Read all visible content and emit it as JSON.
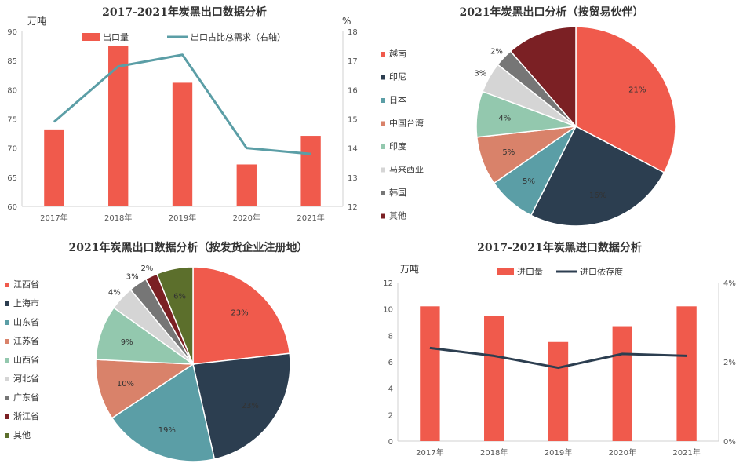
{
  "chart_data": [
    {
      "type": "bar",
      "title": "2017-2021年炭黑出口数据分析",
      "ylabel": "万吨",
      "y2label": "%",
      "categories": [
        "2017年",
        "2018年",
        "2019年",
        "2020年",
        "2021年"
      ],
      "ylim": [
        60,
        90
      ],
      "y2lim": [
        12,
        18
      ],
      "yticks": [
        "60",
        "65",
        "70",
        "75",
        "80",
        "85",
        "90"
      ],
      "y2ticks": [
        "12",
        "13",
        "14",
        "15",
        "16",
        "17",
        "18"
      ],
      "series": [
        {
          "name": "出口量",
          "type": "bar",
          "axis": "left",
          "color": "#f05a4c",
          "values": [
            73.2,
            87.5,
            81.2,
            67.2,
            72.1
          ]
        },
        {
          "name": "出口占比总需求（右轴）",
          "type": "line",
          "axis": "right",
          "color": "#5b9ea6",
          "values": [
            14.9,
            16.8,
            17.2,
            14.0,
            13.8
          ]
        }
      ],
      "legend": "top",
      "grid": false
    },
    {
      "type": "pie",
      "title": "2021年炭黑出口分析（按贸易伙伴）",
      "labels": [
        "越南",
        "印尼",
        "日本",
        "中国台湾",
        "印度",
        "马来西亚",
        "韩国",
        "其他"
      ],
      "values": [
        21,
        16,
        5,
        5,
        4,
        3,
        2,
        null
      ],
      "value_labels": [
        "21%",
        "16%",
        "5%",
        "5%",
        "4%",
        "3%",
        "2%",
        ""
      ],
      "shares": [
        33,
        25,
        8,
        8,
        7.5,
        5,
        3,
        11.5
      ],
      "colors": [
        "#f05a4c",
        "#2c3e50",
        "#5b9ea6",
        "#d9826a",
        "#93c8ae",
        "#d5d5d5",
        "#767676",
        "#7b2024"
      ],
      "legend": "left"
    },
    {
      "type": "pie",
      "title": "2021年炭黑出口数据分析（按发货企业注册地）",
      "labels": [
        "江西省",
        "上海市",
        "山东省",
        "江苏省",
        "山西省",
        "河北省",
        "广东省",
        "浙江省",
        "其他"
      ],
      "values": [
        23,
        23,
        19,
        10,
        9,
        4,
        3,
        2,
        6
      ],
      "value_labels": [
        "23%",
        "23%",
        "19%",
        "10%",
        "9%",
        "4%",
        "3%",
        "2%",
        "6%"
      ],
      "colors": [
        "#f05a4c",
        "#2c3e50",
        "#5b9ea6",
        "#d9826a",
        "#93c8ae",
        "#d5d5d5",
        "#767676",
        "#7b2024",
        "#5c6f2c"
      ],
      "legend": "left"
    },
    {
      "type": "bar",
      "title": "2017-2021年炭黑进口数据分析",
      "ylabel": "万吨",
      "categories": [
        "2017年",
        "2018年",
        "2019年",
        "2020年",
        "2021年"
      ],
      "ylim": [
        0,
        12
      ],
      "y2lim": [
        0,
        4
      ],
      "yticks": [
        "0",
        "2",
        "4",
        "6",
        "8",
        "10",
        "12"
      ],
      "y2ticks": [
        "0%",
        "2%",
        "4%"
      ],
      "series": [
        {
          "name": "进口量",
          "type": "bar",
          "axis": "left",
          "color": "#f05a4c",
          "values": [
            10.2,
            9.5,
            7.5,
            8.7,
            10.2
          ]
        },
        {
          "name": "进口依存度",
          "type": "line",
          "axis": "right",
          "color": "#2c3e50",
          "values": [
            2.35,
            2.15,
            1.85,
            2.2,
            2.15
          ]
        }
      ],
      "legend": "top",
      "grid": false
    }
  ]
}
